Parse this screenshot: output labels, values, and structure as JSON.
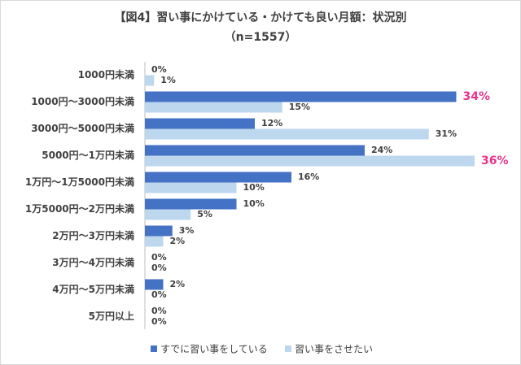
{
  "chart_data": {
    "type": "hbar",
    "title": "【図4】習い事にかけている・かけても良い月額：状況別",
    "subtitle": "（n=1557）",
    "categories": [
      "1000円未満",
      "1000円～3000円未満",
      "3000円～5000円未満",
      "5000円～1万円未満",
      "1万円～1万5000円未満",
      "1万5000円～2万円未満",
      "2万円～3万円未満",
      "3万円～4万円未満",
      "4万円～5万円未満",
      "5万円以上"
    ],
    "series": [
      {
        "name": "すでに習い事をしている",
        "color": "#4472c4",
        "values": [
          0,
          34,
          12,
          24,
          16,
          10,
          3,
          0,
          2,
          0
        ],
        "value_labels": [
          "0%",
          "34%",
          "12%",
          "24%",
          "16%",
          "10%",
          "3%",
          "0%",
          "2%",
          "0%"
        ]
      },
      {
        "name": "習い事をさせたい",
        "color": "#bdd7ee",
        "values": [
          1,
          15,
          31,
          36,
          10,
          5,
          2,
          0,
          0,
          0
        ],
        "value_labels": [
          "1%",
          "15%",
          "31%",
          "36%",
          "10%",
          "5%",
          "2%",
          "0%",
          "0%",
          "0%"
        ]
      }
    ],
    "highlight_color": "#e6348c",
    "legend": "bottom"
  }
}
